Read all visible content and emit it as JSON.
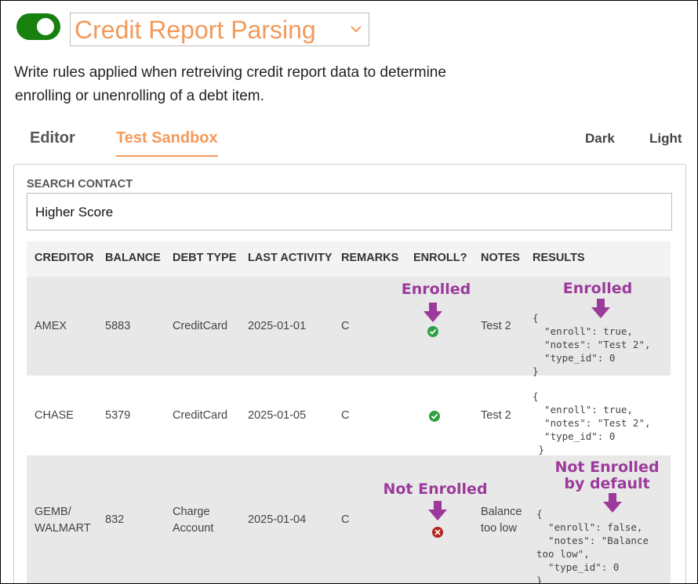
{
  "header": {
    "title": "Credit Report Parsing",
    "description": [
      "Write rules applied when retreiving credit report data to determine",
      "enrolling or unenrolling of a debt item."
    ]
  },
  "tabs": [
    "Editor",
    "Test Sandbox"
  ],
  "theme_options": [
    "Dark",
    "Light"
  ],
  "search": {
    "label": "SEARCH CONTACT",
    "value": "Higher Score"
  },
  "table": {
    "columns": [
      "CREDITOR",
      "BALANCE",
      "DEBT TYPE",
      "LAST ACTIVITY",
      "REMARKS",
      "ENROLL?",
      "NOTES",
      "RESULTS"
    ],
    "rows": [
      {
        "creditor": "AMEX",
        "balance": 5883,
        "debt_type": "CreditCard",
        "last_activity": "2025-01-01",
        "remarks": "C",
        "notes": "Test 2",
        "results": [
          "{",
          "  \"enroll\": true,",
          "  \"notes\": \"Test 2\",",
          "  \"type_id\": 0",
          "}"
        ]
      },
      {
        "creditor": "CHASE",
        "balance": 5379,
        "debt_type": "CreditCard",
        "last_activity": "2025-01-05",
        "remarks": "C",
        "notes": "Test 2",
        "results": [
          "{",
          "  \"enroll\": true,",
          "  \"notes\": \"Test 2\",",
          "  \"type_id\": 0",
          " }"
        ]
      },
      {
        "creditor": "GEMB/ WALMART",
        "balance": 832,
        "debt_type": "Charge Account",
        "last_activity": "2025-01-04",
        "remarks": "C",
        "notes": "Balance too low",
        "results": [
          "{",
          "  \"enroll\": false,",
          "  \"notes\": \"Balance",
          "too low\",",
          "  \"type_id\": 0",
          "}"
        ]
      }
    ]
  },
  "annotations": [
    "Enrolled",
    "Enrolled",
    "Not Enrolled",
    "Not Enrolled by default"
  ]
}
